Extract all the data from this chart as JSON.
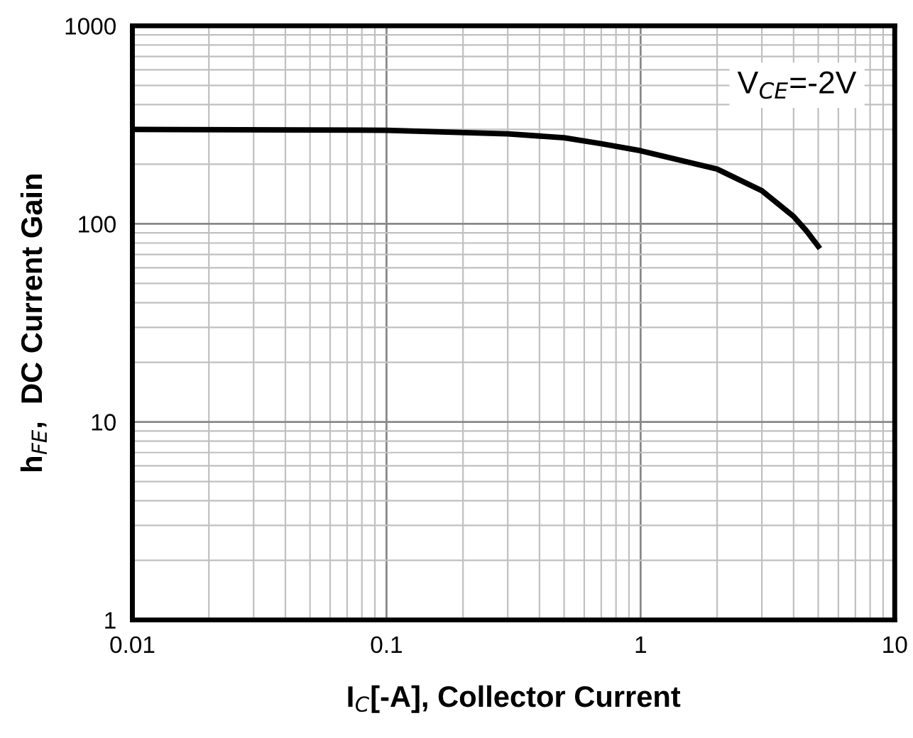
{
  "chart_data": {
    "type": "line",
    "xlabel": "I$_{C}$[-A], Collector Current",
    "ylabel": "h$_{FE}$,  DC Current Gain",
    "annotations": [
      "V$_{CE}$=-2V"
    ],
    "log": "xy",
    "grid": true,
    "marker": "none",
    "line_style": "solid",
    "xlim": [
      0.01,
      10
    ],
    "xticks": [
      0.01,
      0.1,
      1,
      10
    ],
    "ylim": [
      1,
      1000
    ],
    "yticks": [
      1,
      10,
      100,
      1000
    ],
    "series": [
      {
        "color": "#000000",
        "x": [
          0.01,
          0.1,
          0.3,
          0.5,
          0.7,
          1,
          2,
          3,
          4,
          4.5,
          5
        ],
        "values": [
          300,
          297,
          285,
          272,
          254,
          234,
          189,
          147,
          109,
          92,
          77
        ]
      }
    ]
  }
}
